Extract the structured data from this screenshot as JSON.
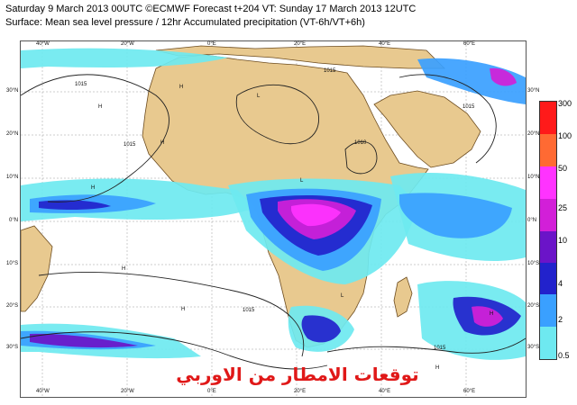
{
  "header": {
    "line1": "Saturday 9 March 2013 00UTC ©ECMWF Forecast t+204 VT: Sunday 17 March 2013 12UTC",
    "line2": "Surface: Mean sea level pressure / 12hr Accumulated precipitation (VT-6h/VT+6h)"
  },
  "map": {
    "lon_labels_top": [
      "40°W",
      "20°W",
      "0°E",
      "20°E",
      "40°E",
      "60°E"
    ],
    "lon_labels_bottom": [
      "40°W",
      "20°W",
      "0°E",
      "20°E",
      "40°E",
      "60°E"
    ],
    "lat_labels_left": [
      "30°N",
      "20°N",
      "10°N",
      "0°N",
      "10°S",
      "20°S",
      "30°S"
    ],
    "lat_labels_right": [
      "30°N",
      "20°N",
      "10°N",
      "0°N",
      "10°S",
      "20°S",
      "30°S"
    ],
    "isobar_labels": [
      "1015",
      "1015",
      "1015",
      "1010",
      "1015",
      "1015",
      "1015"
    ],
    "pressure_centers": [
      "H",
      "H",
      "H",
      "H",
      "L",
      "L",
      "H",
      "H",
      "L",
      "H",
      "H"
    ],
    "colors": {
      "ocean": "#ffffff",
      "land": "#e8c98f",
      "grid": "#9a9a9a",
      "isobar": "#222222",
      "precip_0_5": "#6ee9f0",
      "precip_2": "#3aa0ff",
      "precip_4": "#2222cc",
      "precip_10": "#6b14c8",
      "precip_25": "#d21fd8",
      "precip_50": "#ff33ff",
      "precip_100": "#ff6a33",
      "precip_300": "#ff1a1a"
    }
  },
  "legend": {
    "ticks": [
      "300",
      "100",
      "50",
      "25",
      "10",
      "4",
      "2",
      "0.5"
    ],
    "colors": [
      "#ff1a1a",
      "#ff6a33",
      "#ff33ff",
      "#d21fd8",
      "#6b14c8",
      "#2222cc",
      "#3aa0ff",
      "#6ee9f0"
    ]
  },
  "watermark": "توقعات الامطار من الاوربي"
}
